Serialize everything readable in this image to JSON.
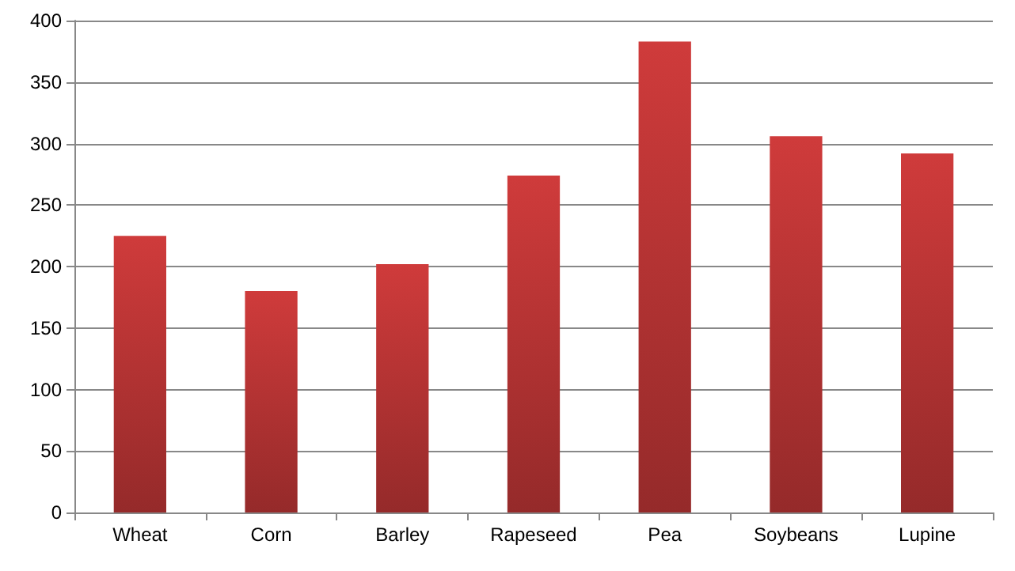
{
  "chart_data": {
    "type": "bar",
    "categories": [
      "Wheat",
      "Corn",
      "Barley",
      "Rapeseed",
      "Pea",
      "Soybeans",
      "Lupine"
    ],
    "values": [
      225,
      180,
      202,
      274,
      383,
      306,
      292
    ],
    "color": "#cf3b3b",
    "ylim": [
      0,
      400
    ],
    "yticks": [
      0,
      50,
      100,
      150,
      200,
      250,
      300,
      350,
      400
    ],
    "grid": "y"
  }
}
